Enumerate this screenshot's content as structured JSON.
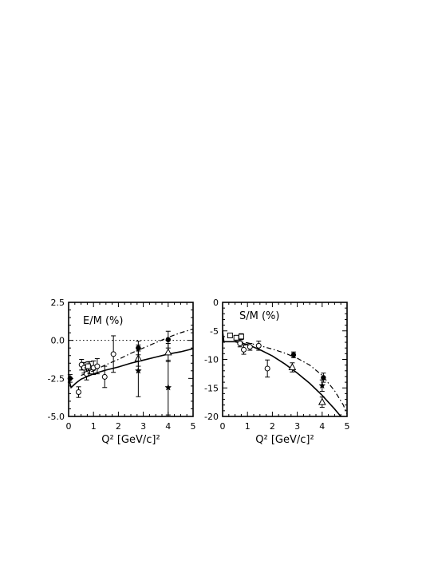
{
  "chart_data": [
    {
      "type": "scatter",
      "title": "E/M (%)",
      "xlabel": "Q² [GeV/c]²",
      "ylabel": "",
      "xlim": [
        0,
        5
      ],
      "ylim": [
        -5.0,
        2.5
      ],
      "xticks": [
        0,
        1,
        2,
        3,
        4,
        5
      ],
      "xticklabels": [
        "0",
        "1",
        "2",
        "3",
        "4",
        "5"
      ],
      "yticks": [
        2.5,
        0.0,
        -2.5,
        -5.0
      ],
      "yticklabels": [
        "2.5",
        "0.0",
        "-2.5",
        "-5.0"
      ],
      "reference_line": {
        "y": 0,
        "style": "dotted"
      },
      "series": [
        {
          "marker": "filled-circle",
          "points": [
            {
              "x": 0.06,
              "y": -2.5,
              "err": 0.25
            },
            {
              "x": 2.8,
              "y": -0.5,
              "err": 0.45
            },
            {
              "x": 4.0,
              "y": 0.05,
              "err": 0.55
            }
          ]
        },
        {
          "marker": "open-circle",
          "points": [
            {
              "x": 0.4,
              "y": -3.4,
              "err": 0.35
            },
            {
              "x": 0.52,
              "y": -1.6,
              "err": 0.35
            },
            {
              "x": 0.62,
              "y": -1.8,
              "err": 0.35
            },
            {
              "x": 0.72,
              "y": -2.2,
              "err": 0.4
            },
            {
              "x": 0.85,
              "y": -1.8,
              "err": 0.4
            },
            {
              "x": 1.0,
              "y": -1.8,
              "err": 0.45
            },
            {
              "x": 1.15,
              "y": -1.7,
              "err": 0.5
            },
            {
              "x": 1.45,
              "y": -2.4,
              "err": 0.7
            },
            {
              "x": 1.8,
              "y": -0.9,
              "err": 1.2
            }
          ]
        },
        {
          "marker": "open-square",
          "points": [
            {
              "x": 0.78,
              "y": -1.7,
              "err": 0.3
            }
          ]
        },
        {
          "marker": "open-triangle",
          "points": [
            {
              "x": 2.8,
              "y": -1.2,
              "err": 0.5
            },
            {
              "x": 4.0,
              "y": -0.8,
              "err": 0.6
            }
          ]
        },
        {
          "marker": "star",
          "points": [
            {
              "x": 2.8,
              "y": -2.0,
              "err": 1.7
            },
            {
              "x": 4.0,
              "y": -3.1,
              "err": 1.8
            }
          ]
        }
      ],
      "curves": [
        {
          "style": "solid",
          "points": [
            [
              0.0,
              -2.5
            ],
            [
              0.1,
              -3.1
            ],
            [
              0.3,
              -2.8
            ],
            [
              0.5,
              -2.55
            ],
            [
              1.0,
              -2.2
            ],
            [
              1.5,
              -1.95
            ],
            [
              2.0,
              -1.75
            ],
            [
              2.5,
              -1.5
            ],
            [
              3.0,
              -1.3
            ],
            [
              3.5,
              -1.1
            ],
            [
              4.0,
              -0.9
            ],
            [
              4.5,
              -0.75
            ],
            [
              5.0,
              -0.55
            ]
          ]
        },
        {
          "style": "dash-dot",
          "points": [
            [
              0.5,
              -2.3
            ],
            [
              1.0,
              -2.0
            ],
            [
              1.5,
              -1.6
            ],
            [
              2.0,
              -1.25
            ],
            [
              2.5,
              -0.85
            ],
            [
              3.0,
              -0.5
            ],
            [
              3.5,
              -0.15
            ],
            [
              4.0,
              0.2
            ],
            [
              4.5,
              0.5
            ],
            [
              5.0,
              0.75
            ]
          ]
        }
      ]
    },
    {
      "type": "scatter",
      "title": "S/M (%)",
      "xlabel": "Q² [GeV/c]²",
      "ylabel": "",
      "xlim": [
        0,
        5
      ],
      "ylim": [
        -20,
        0
      ],
      "xticks": [
        0,
        1,
        2,
        3,
        4,
        5
      ],
      "xticklabels": [
        "0",
        "1",
        "2",
        "3",
        "4",
        "5"
      ],
      "yticks": [
        0,
        -5,
        -10,
        -15,
        -20
      ],
      "yticklabels": [
        "0",
        "-5",
        "-10",
        "-15",
        "-20"
      ],
      "series": [
        {
          "marker": "filled-circle",
          "points": [
            {
              "x": 2.85,
              "y": -9.2,
              "err": 0.5
            },
            {
              "x": 4.05,
              "y": -13.2,
              "err": 0.8
            }
          ]
        },
        {
          "marker": "open-circle",
          "points": [
            {
              "x": 0.7,
              "y": -7.2,
              "err": 0.6
            },
            {
              "x": 0.85,
              "y": -8.3,
              "err": 0.8
            },
            {
              "x": 1.1,
              "y": -7.8,
              "err": 0.6
            },
            {
              "x": 1.45,
              "y": -7.6,
              "err": 0.8
            },
            {
              "x": 1.8,
              "y": -11.6,
              "err": 1.5
            }
          ]
        },
        {
          "marker": "open-square",
          "points": [
            {
              "x": 0.3,
              "y": -5.8,
              "err": 0.4
            },
            {
              "x": 0.55,
              "y": -6.2,
              "err": 0.4
            },
            {
              "x": 0.75,
              "y": -6.0,
              "err": 0.5
            }
          ]
        },
        {
          "marker": "open-triangle",
          "points": [
            {
              "x": 2.8,
              "y": -11.4,
              "err": 0.8
            },
            {
              "x": 4.0,
              "y": -17.5,
              "err": 0.9
            }
          ]
        },
        {
          "marker": "star",
          "points": [
            {
              "x": 4.0,
              "y": -14.6,
              "err": 1.0
            }
          ]
        }
      ],
      "curves": [
        {
          "style": "solid",
          "points": [
            [
              0.0,
              -5.0
            ],
            [
              0.05,
              -6.9
            ],
            [
              0.5,
              -6.9
            ],
            [
              1.0,
              -7.4
            ],
            [
              1.5,
              -8.3
            ],
            [
              2.0,
              -9.4
            ],
            [
              2.5,
              -10.8
            ],
            [
              3.0,
              -12.4
            ],
            [
              3.5,
              -14.2
            ],
            [
              4.0,
              -16.3
            ],
            [
              4.5,
              -18.7
            ],
            [
              4.75,
              -20.0
            ]
          ]
        },
        {
          "style": "dash-dot",
          "points": [
            [
              0.5,
              -6.8
            ],
            [
              1.0,
              -7.1
            ],
            [
              1.5,
              -7.6
            ],
            [
              2.0,
              -8.2
            ],
            [
              2.5,
              -8.9
            ],
            [
              3.0,
              -9.8
            ],
            [
              3.5,
              -11.0
            ],
            [
              4.0,
              -12.8
            ],
            [
              4.5,
              -15.5
            ],
            [
              4.85,
              -18.0
            ],
            [
              5.0,
              -19.6
            ]
          ]
        }
      ]
    }
  ]
}
